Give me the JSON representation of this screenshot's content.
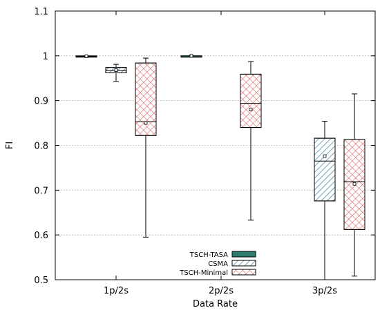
{
  "chart_data": {
    "type": "box",
    "xlabel": "Data Rate",
    "ylabel": "FI",
    "ylim": [
      0.5,
      1.1
    ],
    "yticks": [
      0.5,
      0.6,
      0.7,
      0.8,
      0.9,
      1,
      1.1
    ],
    "ytick_labels": [
      "0.5",
      "0.6",
      "0.7",
      "0.8",
      "0.9",
      "1",
      "1.1"
    ],
    "grid": "horizontal dotted",
    "legend_position": "bottom-center",
    "categories": [
      "1p/2s",
      "2p/2s",
      "3p/2s"
    ],
    "series": [
      {
        "name": "TSCH-TASA",
        "color": "#2e7d6b",
        "pattern": "solid",
        "boxes": [
          {
            "category": "1p/2s",
            "min": 0.998,
            "q1": 0.998,
            "median": 0.999,
            "q3": 1.0,
            "max": 1.0,
            "mean": 0.999
          },
          {
            "category": "2p/2s",
            "min": 0.999,
            "q1": 0.999,
            "median": 1.0,
            "q3": 1.0,
            "max": 1.0,
            "mean": 1.0
          },
          null
        ]
      },
      {
        "name": "CSMA",
        "color": "#2b6f99",
        "pattern": "diagonal",
        "boxes": [
          {
            "category": "1p/2s",
            "min": 0.943,
            "q1": 0.962,
            "median": 0.967,
            "q3": 0.974,
            "max": 0.981,
            "mean": 0.968
          },
          null,
          {
            "category": "3p/2s",
            "min": 0.5,
            "q1": 0.676,
            "median": 0.765,
            "q3": 0.816,
            "max": 0.854,
            "mean": 0.776
          }
        ]
      },
      {
        "name": "TSCH-Minimal",
        "color": "#d9534f",
        "pattern": "crosshatch",
        "boxes": [
          {
            "category": "1p/2s",
            "min": 0.595,
            "q1": 0.822,
            "median": 0.853,
            "q3": 0.984,
            "max": 0.995,
            "mean": 0.85
          },
          {
            "category": "2p/2s",
            "min": 0.633,
            "q1": 0.84,
            "median": 0.894,
            "q3": 0.959,
            "max": 0.987,
            "mean": 0.88
          },
          {
            "category": "3p/2s",
            "min": 0.508,
            "q1": 0.612,
            "median": 0.719,
            "q3": 0.813,
            "max": 0.915,
            "mean": 0.714
          }
        ]
      }
    ]
  }
}
